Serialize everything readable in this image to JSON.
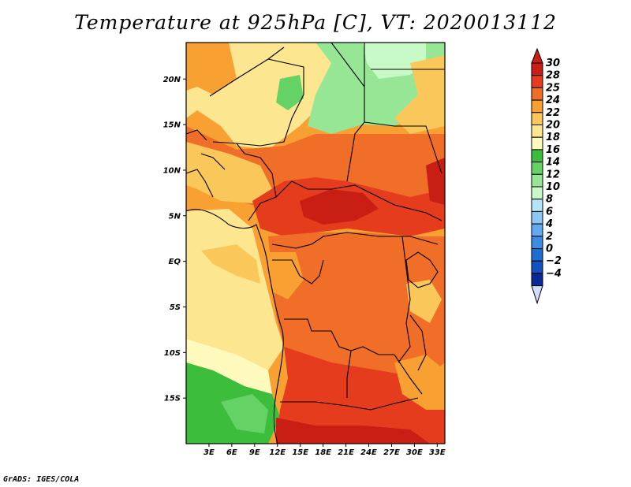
{
  "title": "Temperature at 925hPa [C], VT: 2020013112",
  "credit": "GrADS: IGES/COLA",
  "map": {
    "lon_range": [
      0,
      34
    ],
    "lat_range": [
      -20,
      24
    ],
    "lat_labels": [
      {
        "lat": 20,
        "text": "20N"
      },
      {
        "lat": 15,
        "text": "15N"
      },
      {
        "lat": 10,
        "text": "10N"
      },
      {
        "lat": 5,
        "text": "5N"
      },
      {
        "lat": 0,
        "text": "EQ"
      },
      {
        "lat": -5,
        "text": "5S"
      },
      {
        "lat": -10,
        "text": "10S"
      },
      {
        "lat": -15,
        "text": "15S"
      }
    ],
    "lon_labels": [
      {
        "lon": 3,
        "text": "3E"
      },
      {
        "lon": 6,
        "text": "6E"
      },
      {
        "lon": 9,
        "text": "9E"
      },
      {
        "lon": 12,
        "text": "12E"
      },
      {
        "lon": 15,
        "text": "15E"
      },
      {
        "lon": 18,
        "text": "18E"
      },
      {
        "lon": 21,
        "text": "21E"
      },
      {
        "lon": 24,
        "text": "24E"
      },
      {
        "lon": 27,
        "text": "27E"
      },
      {
        "lon": 30,
        "text": "30E"
      },
      {
        "lon": 33,
        "text": "33E"
      }
    ]
  },
  "colorbar": {
    "levels": [
      {
        "label": "30",
        "color": "#c81e14"
      },
      {
        "label": "28",
        "color": "#e63c1e"
      },
      {
        "label": "25",
        "color": "#f06e28"
      },
      {
        "label": "24",
        "color": "#f8a032"
      },
      {
        "label": "22",
        "color": "#fac85a"
      },
      {
        "label": "20",
        "color": "#fce690"
      },
      {
        "label": "18",
        "color": "#fefabe"
      },
      {
        "label": "16",
        "color": "#3cbe3c"
      },
      {
        "label": "14",
        "color": "#64d264"
      },
      {
        "label": "12",
        "color": "#96e696"
      },
      {
        "label": "10",
        "color": "#c8fac8"
      },
      {
        "label": "8",
        "color": "#b4e6fa"
      },
      {
        "label": "6",
        "color": "#8cc8f5"
      },
      {
        "label": "4",
        "color": "#64aaf0"
      },
      {
        "label": "2",
        "color": "#3c8ce6"
      },
      {
        "label": "0",
        "color": "#1e6ed2"
      },
      {
        "label": "−2",
        "color": "#1450be"
      },
      {
        "label": "−4",
        "color": "#0a2896"
      }
    ],
    "top_color": "#c81e14",
    "bottom_color": "#d2dcff"
  }
}
